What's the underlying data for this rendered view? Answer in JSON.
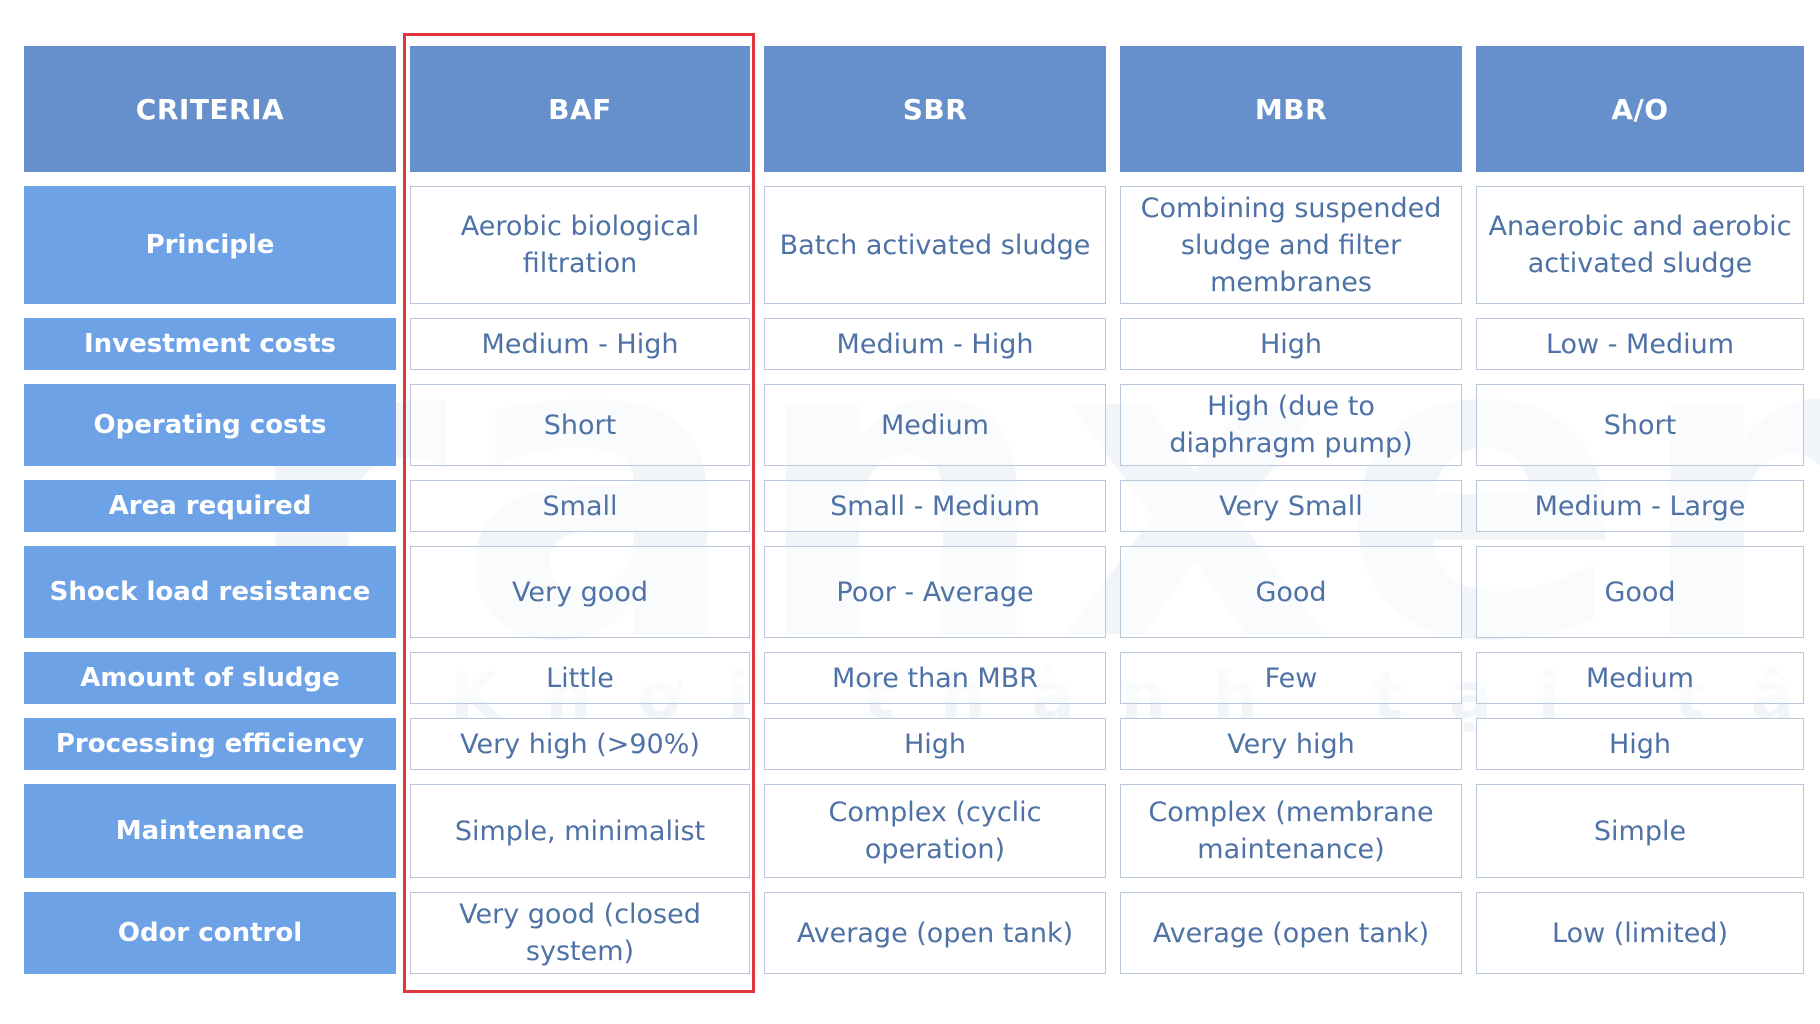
{
  "watermark": {
    "brand": "ranxen",
    "slogan": "Khơi thành tại tâm"
  },
  "table": {
    "headers": [
      "CRITERIA",
      "BAF",
      "SBR",
      "MBR",
      "A/O"
    ],
    "rows": [
      {
        "criteria": "Principle",
        "cells": [
          "Aerobic biological filtration",
          "Batch activated sludge",
          "Combining suspended sludge and filter membranes",
          "Anaerobic and aerobic activated sludge"
        ]
      },
      {
        "criteria": "Investment costs",
        "cells": [
          "Medium - High",
          "Medium - High",
          "High",
          "Low - Medium"
        ]
      },
      {
        "criteria": "Operating costs",
        "cells": [
          "Short",
          "Medium",
          "High (due to diaphragm pump)",
          "Short"
        ]
      },
      {
        "criteria": "Area required",
        "cells": [
          "Small",
          "Small - Medium",
          "Very Small",
          "Medium - Large"
        ]
      },
      {
        "criteria": "Shock load resistance",
        "cells": [
          "Very good",
          "Poor - Average",
          "Good",
          "Good"
        ]
      },
      {
        "criteria": "Amount of sludge",
        "cells": [
          "Little",
          "More than MBR",
          "Few",
          "Medium"
        ]
      },
      {
        "criteria": "Processing efficiency",
        "cells": [
          "Very high (>90%)",
          "High",
          "Very high",
          "High"
        ]
      },
      {
        "criteria": "Maintenance",
        "cells": [
          "Simple, minimalist",
          "Complex (cyclic operation)",
          "Complex (membrane maintenance)",
          "Simple"
        ]
      },
      {
        "criteria": "Odor control",
        "cells": [
          "Very good (closed system)",
          "Average (open tank)",
          "Average (open tank)",
          "Low (limited)"
        ]
      }
    ]
  },
  "colors": {
    "header_bg": "#6690cc",
    "criteria_bg": "#6ea2e6",
    "cell_text": "#4f72a6",
    "cell_border": "#b8c7da",
    "highlight_border": "#e0353b"
  },
  "highlighted_column": "BAF"
}
